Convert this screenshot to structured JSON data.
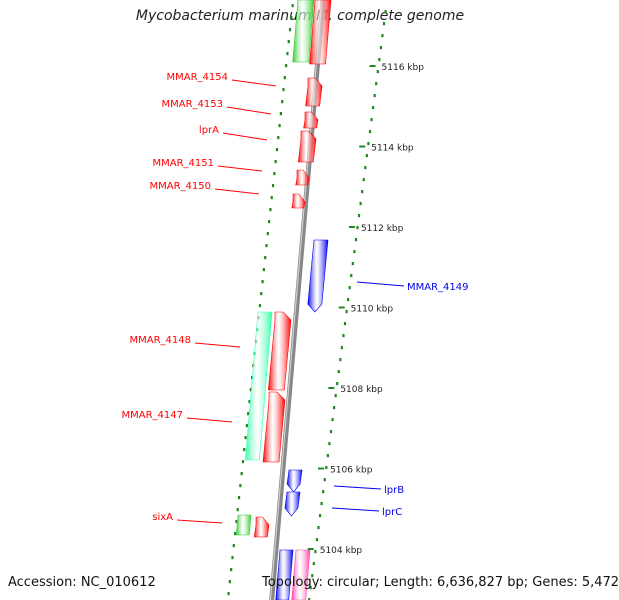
{
  "title": "Mycobacterium marinum M, complete genome",
  "accession": "Accession: NC_010612",
  "summary": "Topology: circular; Length: 6,636,827 bp; Genes: 5,472",
  "scale": [
    {
      "kbp": 5116,
      "label": "5116 kbp"
    },
    {
      "kbp": 5114,
      "label": "5114 kbp"
    },
    {
      "kbp": 5112,
      "label": "5112 kbp"
    },
    {
      "kbp": 5110,
      "label": "5110 kbp"
    },
    {
      "kbp": 5108,
      "label": "5108 kbp"
    },
    {
      "kbp": 5106,
      "label": "5106 kbp"
    },
    {
      "kbp": 5104,
      "label": "5104 kbp"
    }
  ],
  "genes": [
    {
      "label": "MMAR_4154",
      "strand": "-",
      "color": "#ff0000"
    },
    {
      "label": "MMAR_4153",
      "strand": "-",
      "color": "#ff0000"
    },
    {
      "label": "lprA",
      "strand": "-",
      "color": "#ff0000"
    },
    {
      "label": "MMAR_4151",
      "strand": "-",
      "color": "#ff0000"
    },
    {
      "label": "MMAR_4150",
      "strand": "-",
      "color": "#ff0000"
    },
    {
      "label": "MMAR_4149",
      "strand": "+",
      "color": "#0000ee"
    },
    {
      "label": "MMAR_4148",
      "strand": "-",
      "color": "#ff0000"
    },
    {
      "label": "MMAR_4147",
      "strand": "-",
      "color": "#ff0000"
    },
    {
      "label": "lprB",
      "strand": "+",
      "color": "#0000ee"
    },
    {
      "label": "lprC",
      "strand": "+",
      "color": "#0000ee"
    },
    {
      "label": "sixA",
      "strand": "-",
      "color": "#ff0000"
    }
  ],
  "colors": {
    "forward": "#0000ee",
    "reverse": "#ff0000",
    "feature_green": "#33cc33",
    "feature_teal": "#33ffaa",
    "feature_pink": "#ff44aa",
    "backbone": "#888888",
    "ticks": "#228822"
  }
}
